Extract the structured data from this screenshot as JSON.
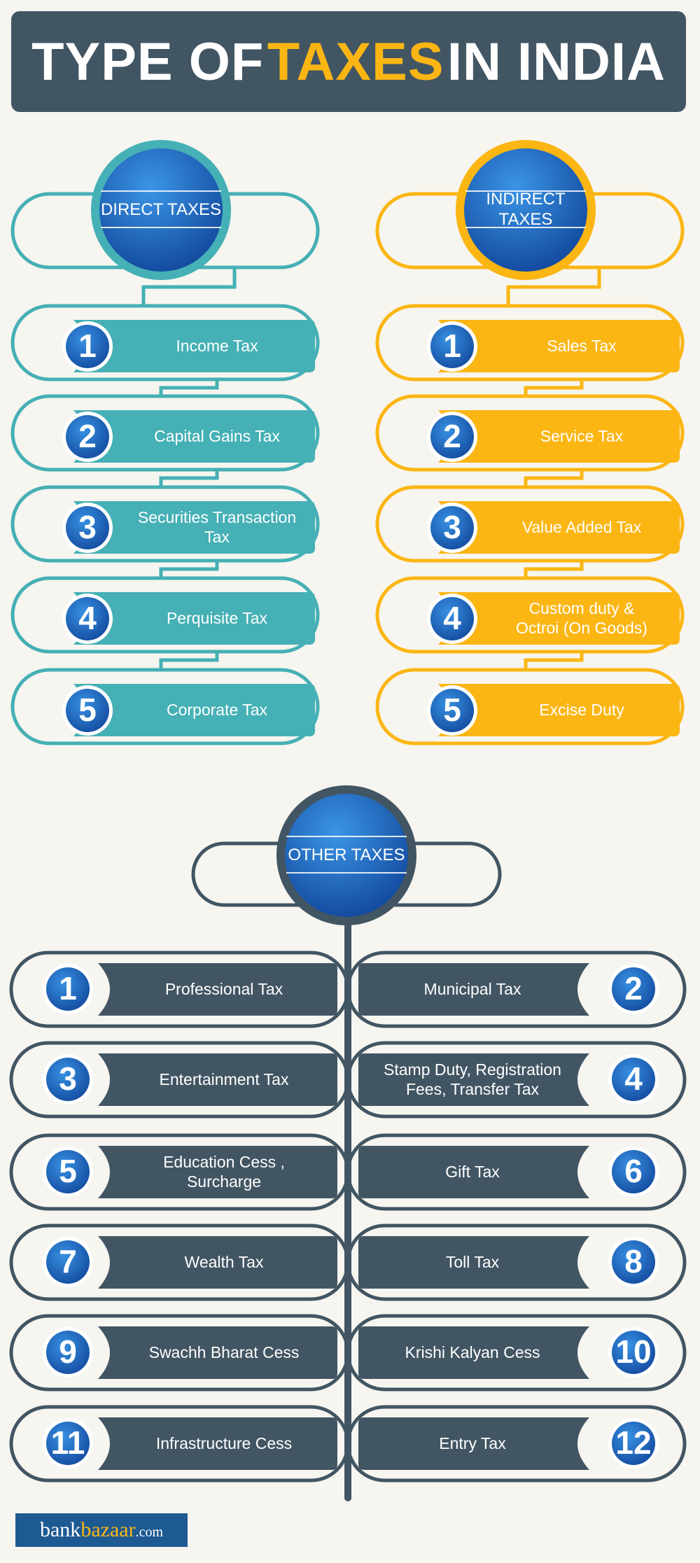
{
  "title": {
    "part1": "TYPE OF",
    "highlight": "TAXES",
    "part2": "IN INDIA"
  },
  "direct": {
    "heading": "DIRECT TAXES",
    "items": [
      {
        "num": "1",
        "label": "Income Tax"
      },
      {
        "num": "2",
        "label": "Capital Gains Tax"
      },
      {
        "num": "3",
        "label": "Securities Transaction\nTax"
      },
      {
        "num": "4",
        "label": "Perquisite Tax"
      },
      {
        "num": "5",
        "label": "Corporate Tax"
      }
    ]
  },
  "indirect": {
    "heading": "INDIRECT TAXES",
    "items": [
      {
        "num": "1",
        "label": "Sales Tax"
      },
      {
        "num": "2",
        "label": "Service Tax"
      },
      {
        "num": "3",
        "label": "Value Added Tax"
      },
      {
        "num": "4",
        "label": "Custom duty &\nOctroi (On Goods)"
      },
      {
        "num": "5",
        "label": "Excise Duty"
      }
    ]
  },
  "other": {
    "heading": "OTHER TAXES",
    "items": [
      {
        "num": "1",
        "label": "Professional Tax"
      },
      {
        "num": "2",
        "label": "Municipal Tax"
      },
      {
        "num": "3",
        "label": "Entertainment Tax"
      },
      {
        "num": "4",
        "label": "Stamp Duty, Registration\nFees, Transfer Tax"
      },
      {
        "num": "5",
        "label": "Education Cess ,\nSurcharge"
      },
      {
        "num": "6",
        "label": "Gift Tax"
      },
      {
        "num": "7",
        "label": "Wealth Tax"
      },
      {
        "num": "8",
        "label": "Toll Tax"
      },
      {
        "num": "9",
        "label": "Swachh Bharat Cess"
      },
      {
        "num": "10",
        "label": "Krishi Kalyan Cess"
      },
      {
        "num": "11",
        "label": "Infrastructure Cess"
      },
      {
        "num": "12",
        "label": "Entry Tax"
      }
    ]
  },
  "logo": {
    "part1": "bank",
    "part2": "bazaar",
    "part3": ".com"
  },
  "colors": {
    "direct": "#45b0b5",
    "indirect": "#fbb614",
    "other": "#425563",
    "badge": "#1e63b5",
    "background": "#f6f5f0"
  }
}
